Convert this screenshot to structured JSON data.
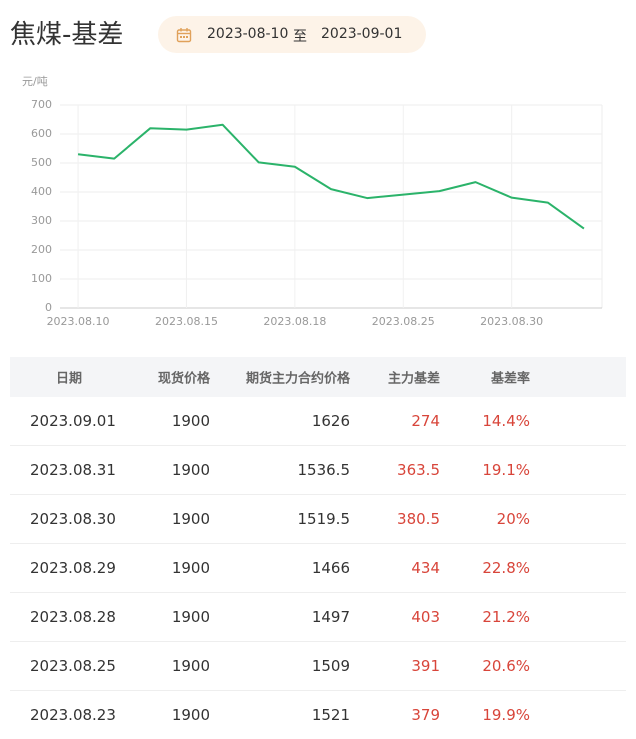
{
  "header": {
    "title": "焦煤-基差",
    "start_date": "2023-08-10",
    "separator": "至",
    "end_date": "2023-09-01"
  },
  "chart_data": {
    "type": "line",
    "y_label": "元/吨",
    "categories": [
      "2023.08.10",
      null,
      null,
      "2023.08.15",
      null,
      null,
      "2023.08.18",
      null,
      null,
      "2023.08.25",
      null,
      null,
      "2023.08.30",
      null,
      null
    ],
    "values": [
      530,
      515,
      620,
      615,
      632,
      502,
      487,
      410,
      379,
      391,
      403,
      434,
      380.5,
      363.5,
      274
    ],
    "color": "#2bb36a",
    "ylim": [
      0,
      700
    ],
    "yticks": [
      0,
      100,
      200,
      300,
      400,
      500,
      600,
      700
    ],
    "grid": true
  },
  "table": {
    "columns": [
      "日期",
      "现货价格",
      "期货主力合约价格",
      "主力基差",
      "基差率"
    ],
    "rows": [
      [
        "2023.09.01",
        "1900",
        "1626",
        "274",
        "14.4%"
      ],
      [
        "2023.08.31",
        "1900",
        "1536.5",
        "363.5",
        "19.1%"
      ],
      [
        "2023.08.30",
        "1900",
        "1519.5",
        "380.5",
        "20%"
      ],
      [
        "2023.08.29",
        "1900",
        "1466",
        "434",
        "22.8%"
      ],
      [
        "2023.08.28",
        "1900",
        "1497",
        "403",
        "21.2%"
      ],
      [
        "2023.08.25",
        "1900",
        "1509",
        "391",
        "20.6%"
      ],
      [
        "2023.08.23",
        "1900",
        "1521",
        "379",
        "19.9%"
      ]
    ]
  }
}
